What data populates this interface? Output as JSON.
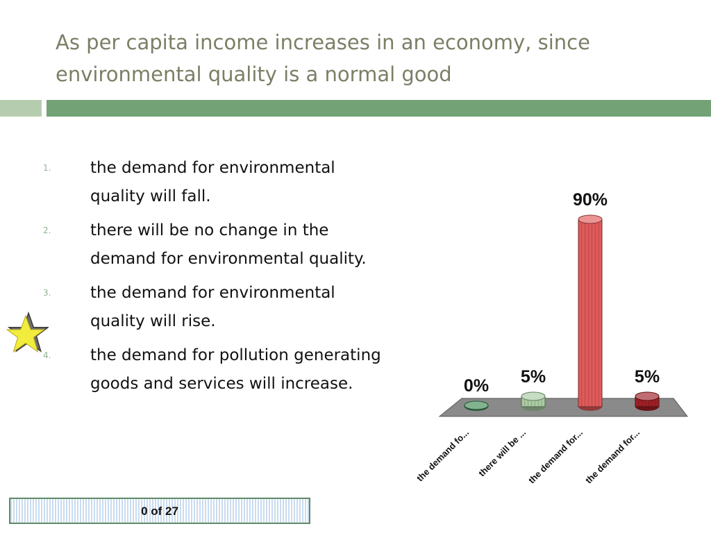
{
  "title": "As per capita income increases in an economy, since environmental quality is a normal good",
  "answers": [
    {
      "number": "1.",
      "text": "the  demand for environmental quality will fall."
    },
    {
      "number": "2.",
      "text": "there will be no change in the demand for environmental quality."
    },
    {
      "number": "3.",
      "text": "the demand for environmental quality will rise."
    },
    {
      "number": "4.",
      "text": "the demand for pollution generating goods and services will increase."
    }
  ],
  "correct_answer_index": 3,
  "counter": "0 of 27",
  "chart_data": {
    "type": "bar",
    "categories": [
      "the demand fo...",
      "there will be ...",
      "the demand for...",
      "the demand for..."
    ],
    "values": [
      0,
      5,
      90,
      5
    ],
    "value_labels": [
      "0%",
      "5%",
      "90%",
      "5%"
    ],
    "ylim": [
      0,
      100
    ],
    "colors": [
      "#3f8a55",
      "#a9cba1",
      "#e05a5a",
      "#9e1f26"
    ],
    "grid": false,
    "legend": "none",
    "style": "3d cylinders"
  }
}
